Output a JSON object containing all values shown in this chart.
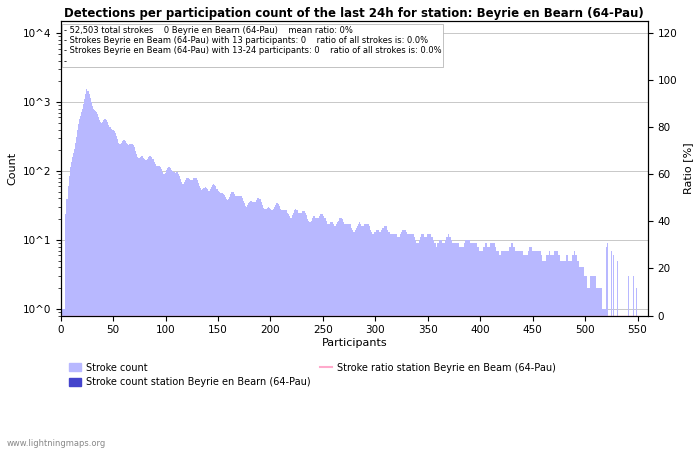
{
  "title": "Detections per participation count of the last 24h for station: Beyrie en Bearn (64-Pau)",
  "xlabel": "Participants",
  "ylabel_left": "Count",
  "ylabel_right": "Ratio [%]",
  "annotation_lines": [
    "52,503 total strokes    0 Beyrie en Bearn (64-Pau)    mean ratio: 0%",
    "Strokes Beyrie en Beam (64-Pau) with 13 participants: 0    ratio of all strokes is: 0.0%",
    "Strokes Beyrie en Beam (64-Pau) with 13-24 participants: 0    ratio of all strokes is: 0.0%"
  ],
  "bar_color_light": "#b8b8ff",
  "bar_color_dark": "#4444cc",
  "ratio_line_color": "#ffaacc",
  "watermark": "www.lightningmaps.org",
  "xlim": [
    0,
    560
  ],
  "ylim_right": [
    0,
    125
  ],
  "right_ticks": [
    0,
    20,
    40,
    60,
    80,
    100,
    120
  ],
  "legend_entries": [
    "Stroke count",
    "Stroke count station Beyrie en Bearn (64-Pau)",
    "Stroke ratio station Beyrie en Beam (64-Pau)"
  ],
  "ytick_labels": [
    "10^0",
    "10^1",
    "10^2",
    "10^3",
    "10^4"
  ],
  "ytick_vals": [
    1,
    10,
    100,
    1000,
    10000
  ]
}
